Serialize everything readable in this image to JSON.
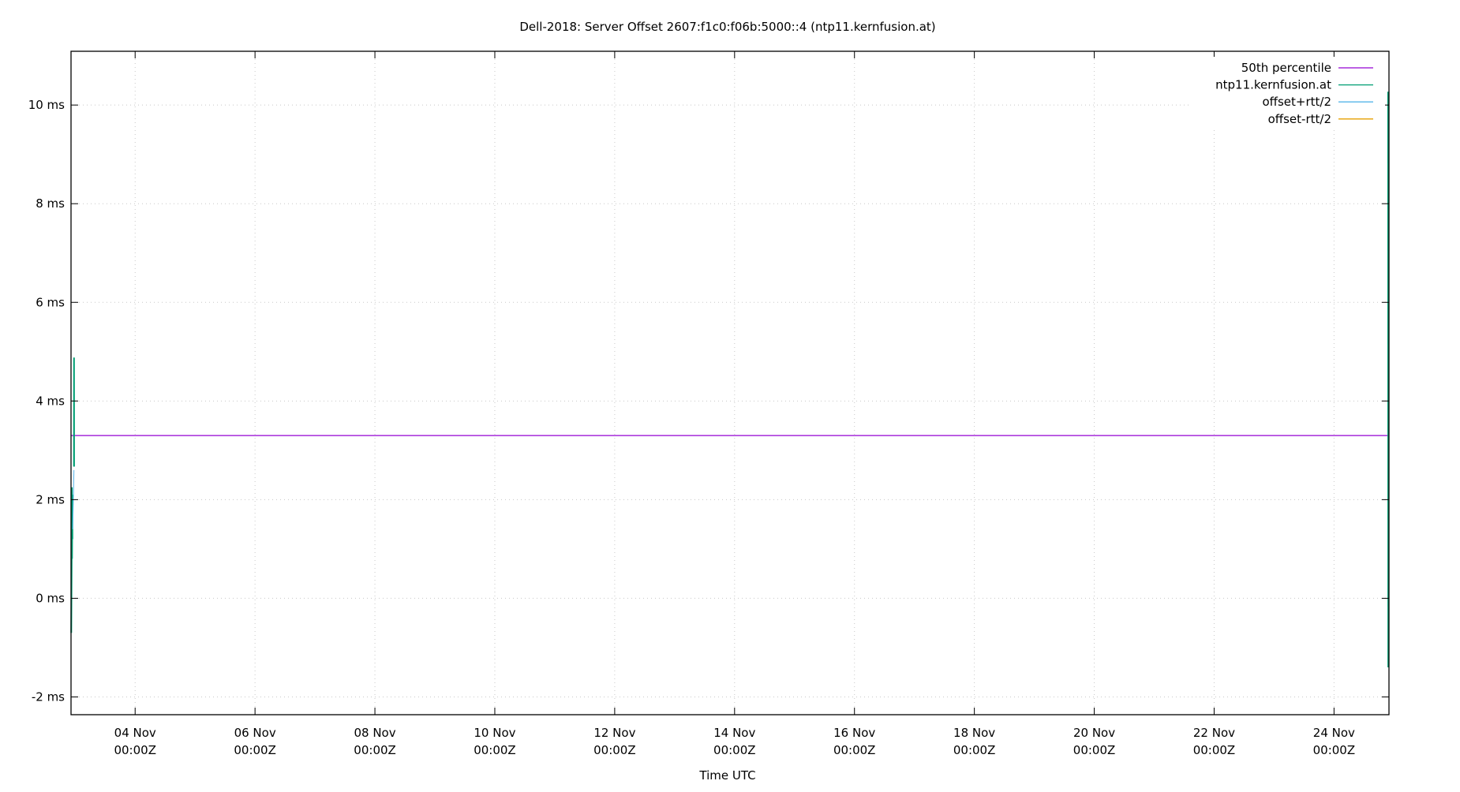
{
  "chart_data": {
    "type": "line",
    "title": "Dell-2018: Server Offset 2607:f1c0:f06b:5000::4 (ntp11.kernfusion.at)",
    "xlabel": "Time UTC",
    "ylabel": "",
    "xlim": [
      "02 Nov 22:20",
      "24 Nov 22:00"
    ],
    "ylim": [
      -2.36,
      11.09
    ],
    "grid": true,
    "legend_position": "top-right",
    "y_ticks": [
      {
        "value": -2,
        "label": "-2 ms"
      },
      {
        "value": 0,
        "label": "0 ms"
      },
      {
        "value": 2,
        "label": "2 ms"
      },
      {
        "value": 4,
        "label": "4 ms"
      },
      {
        "value": 6,
        "label": "6 ms"
      },
      {
        "value": 8,
        "label": "8 ms"
      },
      {
        "value": 10,
        "label": "10 ms"
      }
    ],
    "x_ticks": [
      {
        "value": "04 Nov 00:00",
        "label1": "04 Nov",
        "label2": "00:00Z"
      },
      {
        "value": "06 Nov 00:00",
        "label1": "06 Nov",
        "label2": "00:00Z"
      },
      {
        "value": "08 Nov 00:00",
        "label1": "08 Nov",
        "label2": "00:00Z"
      },
      {
        "value": "10 Nov 00:00",
        "label1": "10 Nov",
        "label2": "00:00Z"
      },
      {
        "value": "12 Nov 00:00",
        "label1": "12 Nov",
        "label2": "00:00Z"
      },
      {
        "value": "14 Nov 00:00",
        "label1": "14 Nov",
        "label2": "00:00Z"
      },
      {
        "value": "16 Nov 00:00",
        "label1": "16 Nov",
        "label2": "00:00Z"
      },
      {
        "value": "18 Nov 00:00",
        "label1": "18 Nov",
        "label2": "00:00Z"
      },
      {
        "value": "20 Nov 00:00",
        "label1": "20 Nov",
        "label2": "00:00Z"
      },
      {
        "value": "22 Nov 00:00",
        "label1": "22 Nov",
        "label2": "00:00Z"
      },
      {
        "value": "24 Nov 00:00",
        "label1": "24 Nov",
        "label2": "00:00Z"
      }
    ],
    "series": [
      {
        "name": "50th percentile",
        "color": "#9400d3",
        "width": 1.3,
        "segments": [
          [
            [
              "02 Nov 22:20",
              3.3
            ],
            [
              "24 Nov 22:00",
              3.3
            ]
          ]
        ]
      },
      {
        "name": "ntp11.kernfusion.at",
        "color": "#009e73",
        "width": 2,
        "segments": [
          [
            [
              "02 Nov 22:25",
              -0.7
            ],
            [
              "02 Nov 22:35",
              0.73
            ],
            [
              "02 Nov 22:40",
              2.25
            ],
            [
              "02 Nov 22:45",
              0.8
            ],
            [
              "02 Nov 22:50",
              2.1
            ],
            [
              "02 Nov 22:55",
              1.2
            ]
          ],
          [
            [
              "02 Nov 23:30",
              2.67
            ],
            [
              "02 Nov 23:32",
              4.88
            ],
            [
              "02 Nov 23:34",
              2.67
            ]
          ],
          [
            [
              "24 Nov 21:40",
              10.27
            ],
            [
              "24 Nov 21:42",
              -1.4
            ]
          ]
        ]
      },
      {
        "name": "offset+rtt/2",
        "color": "#56b4e9",
        "width": 1,
        "segments": [
          [
            [
              "02 Nov 23:00",
              1.4
            ],
            [
              "02 Nov 23:30",
              2.6
            ]
          ]
        ]
      },
      {
        "name": "offset-rtt/2",
        "color": "#e69f00",
        "width": 1,
        "segments": []
      }
    ]
  }
}
